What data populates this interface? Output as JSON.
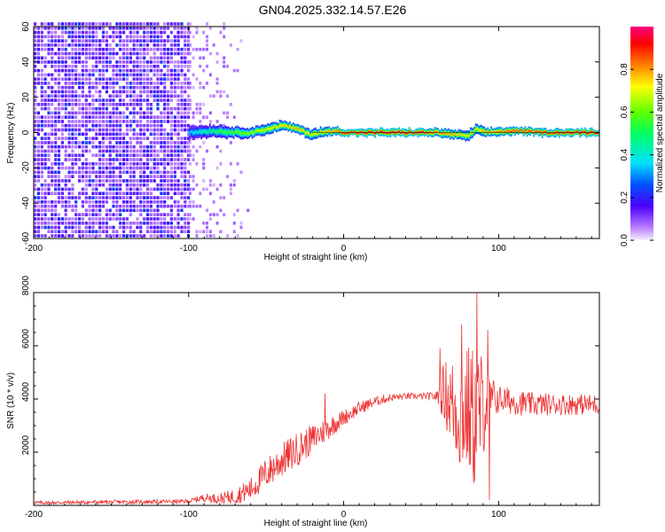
{
  "title": "GN04.2025.332.14.57.E26",
  "chart_data": [
    {
      "type": "heatmap",
      "xlabel": "Height of straight line (km)",
      "ylabel": "Frequency (Hz)",
      "xlim": [
        -200,
        165
      ],
      "ylim": [
        -60,
        60
      ],
      "xticks": [
        -200,
        -100,
        0,
        100
      ],
      "yticks": [
        -60,
        -40,
        -20,
        0,
        20,
        40,
        60
      ],
      "noise_region": {
        "x_from": -200,
        "x_to": -100,
        "sparse_to": -60
      },
      "signal_band": [
        {
          "x": -100,
          "freq": 0,
          "amp": 0.35
        },
        {
          "x": -85,
          "freq": 1,
          "amp": 0.5
        },
        {
          "x": -70,
          "freq": 0,
          "amp": 0.6
        },
        {
          "x": -60,
          "freq": 0,
          "amp": 0.65
        },
        {
          "x": -50,
          "freq": 2,
          "amp": 0.7
        },
        {
          "x": -40,
          "freq": 4,
          "amp": 0.75
        },
        {
          "x": -30,
          "freq": 2,
          "amp": 0.8
        },
        {
          "x": -22,
          "freq": -1,
          "amp": 0.7
        },
        {
          "x": -15,
          "freq": 0,
          "amp": 0.75
        },
        {
          "x": -5,
          "freq": 1,
          "amp": 0.85
        },
        {
          "x": 0,
          "freq": 0,
          "amp": 0.95
        },
        {
          "x": 50,
          "freq": 0,
          "amp": 0.95
        },
        {
          "x": 60,
          "freq": 0,
          "amp": 0.85
        },
        {
          "x": 70,
          "freq": -1,
          "amp": 0.8
        },
        {
          "x": 80,
          "freq": -2,
          "amp": 0.7
        },
        {
          "x": 85,
          "freq": 2,
          "amp": 0.7
        },
        {
          "x": 90,
          "freq": 0,
          "amp": 0.8
        },
        {
          "x": 110,
          "freq": 1,
          "amp": 0.9
        },
        {
          "x": 130,
          "freq": 0,
          "amp": 0.9
        },
        {
          "x": 150,
          "freq": 0,
          "amp": 0.95
        },
        {
          "x": 165,
          "freq": 0,
          "amp": 0.95
        }
      ],
      "colorbar": {
        "label": "Normalized spectral amplitude",
        "range": [
          0.0,
          1.0
        ],
        "ticks": [
          "0.0",
          "0.2",
          "0.4",
          "0.6",
          "0.8"
        ],
        "tick_values": [
          0.0,
          0.2,
          0.4,
          0.6,
          0.8
        ]
      }
    },
    {
      "type": "line",
      "xlabel": "Height of straight line (km)",
      "ylabel": "SNR (10 * v/v)",
      "xlim": [
        -200,
        165
      ],
      "ylim": [
        0,
        8000
      ],
      "xticks": [
        -200,
        -100,
        0,
        100
      ],
      "yticks": [
        2000,
        4000,
        6000,
        8000
      ],
      "color": "#ee3333",
      "envelope": {
        "x": [
          -200,
          -100,
          -90,
          -80,
          -70,
          -60,
          -50,
          -40,
          -30,
          -20,
          -10,
          0,
          10,
          20,
          30,
          40,
          50,
          60,
          65,
          70,
          75,
          80,
          85,
          90,
          95,
          100,
          120,
          140,
          165
        ],
        "mean": [
          100,
          150,
          300,
          250,
          350,
          600,
          1200,
          1700,
          2100,
          2500,
          2900,
          3300,
          3650,
          3900,
          4050,
          4100,
          4100,
          4100,
          4300,
          3800,
          3400,
          3600,
          3200,
          3800,
          4000,
          4000,
          3800,
          3800,
          3800
        ],
        "spread": [
          70,
          80,
          150,
          200,
          300,
          450,
          600,
          650,
          650,
          550,
          450,
          300,
          250,
          200,
          150,
          120,
          120,
          180,
          1200,
          1800,
          2200,
          2500,
          2800,
          2000,
          900,
          550,
          450,
          400,
          400
        ]
      },
      "spikes": [
        {
          "x": -12,
          "value": 4200
        },
        {
          "x": 62,
          "value": 5900
        },
        {
          "x": 76,
          "value": 6800
        },
        {
          "x": 86,
          "value": 8000
        },
        {
          "x": 93,
          "value": 6600
        },
        {
          "x": 94,
          "value": 200
        }
      ]
    }
  ]
}
